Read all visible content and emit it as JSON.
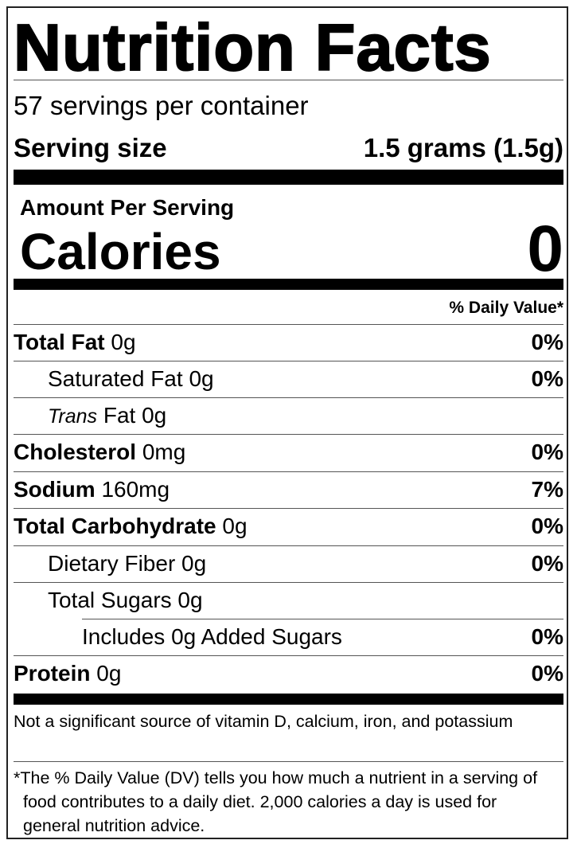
{
  "title": "Nutrition Facts",
  "servings_per_container": "57 servings per container",
  "serving_size": {
    "label": "Serving size",
    "value": "1.5 grams (1.5g)"
  },
  "amount_per_serving": "Amount Per Serving",
  "calories": {
    "label": "Calories",
    "value": "0"
  },
  "daily_value_header": "% Daily Value*",
  "nutrients": [
    {
      "name": "Total Fat",
      "amount": "0g",
      "dv": "0%",
      "bold": true,
      "indent": 0
    },
    {
      "name": "Saturated Fat",
      "amount": "0g",
      "dv": "0%",
      "bold": false,
      "indent": 1
    },
    {
      "name_italic": "Trans",
      "name": "Fat",
      "amount": "0g",
      "dv": "",
      "bold": false,
      "indent": 1
    },
    {
      "name": "Cholesterol",
      "amount": "0mg",
      "dv": "0%",
      "bold": true,
      "indent": 0
    },
    {
      "name": "Sodium",
      "amount": "160mg",
      "dv": "7%",
      "bold": true,
      "indent": 0
    },
    {
      "name": "Total Carbohydrate",
      "amount": "0g",
      "dv": "0%",
      "bold": true,
      "indent": 0
    },
    {
      "name": "Dietary Fiber",
      "amount": "0g",
      "dv": "0%",
      "bold": false,
      "indent": 1
    },
    {
      "name": "Total Sugars",
      "amount": "0g",
      "dv": "",
      "bold": false,
      "indent": 1
    },
    {
      "name": "Includes 0g Added Sugars",
      "amount": "",
      "dv": "0%",
      "bold": false,
      "indent": 2
    },
    {
      "name": "Protein",
      "amount": "0g",
      "dv": "0%",
      "bold": true,
      "indent": 0
    }
  ],
  "not_significant": "Not a significant source of vitamin D, calcium, iron, and potassium",
  "footnote": "*The % Daily Value (DV) tells you how much a nutrient in a serving of food contributes to a daily diet. 2,000 calories a day is used for general nutrition advice."
}
